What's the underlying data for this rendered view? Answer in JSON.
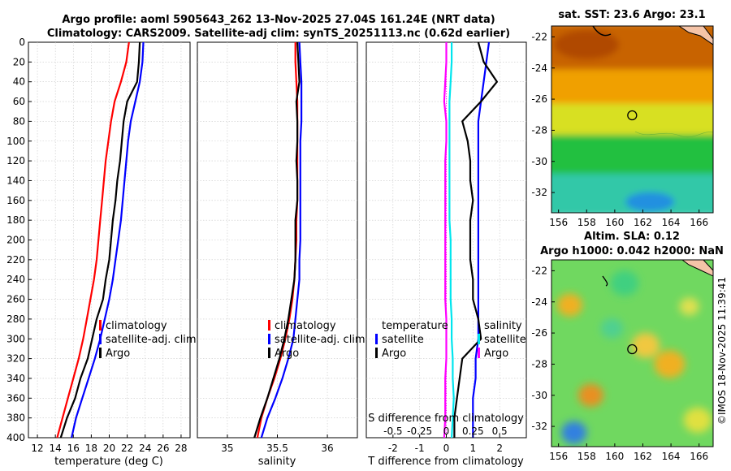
{
  "title": {
    "line1": "Argo profile: aoml 5905643_262 13-Nov-2025 27.04S 161.24E (NRT data)",
    "line2": "Climatology: CARS2009. Satellite-adj clim: synTS_20251113.nc (0.62d earlier)"
  },
  "copyright": "©IMOS 18-Nov-2025 11:39:41",
  "colors": {
    "red": "#ff0000",
    "blue": "#0000ff",
    "black": "#000000",
    "cyan": "#00e5ee",
    "magenta": "#ff00ff"
  },
  "chart_data": [
    {
      "name": "temperature-profile",
      "type": "line",
      "xlabel": "temperature (deg C)",
      "ylabel": "",
      "xlim": [
        11,
        29
      ],
      "ylim": [
        0,
        400
      ],
      "xticks": [
        "12",
        "14",
        "16",
        "18",
        "20",
        "22",
        "24",
        "26",
        "28"
      ],
      "xtick_values": [
        12,
        14,
        16,
        18,
        20,
        22,
        24,
        26,
        28
      ],
      "yticks": [
        "0",
        "20",
        "40",
        "60",
        "80",
        "100",
        "120",
        "140",
        "160",
        "180",
        "200",
        "220",
        "240",
        "260",
        "280",
        "300",
        "320",
        "340",
        "360",
        "380",
        "400"
      ],
      "grid": true,
      "legend": {
        "placement": "lower-right",
        "entries": [
          "climatology",
          "satellite-adj. clim",
          "Argo"
        ]
      },
      "series": [
        {
          "name": "climatology",
          "color": "red",
          "depth": [
            0,
            20,
            40,
            60,
            80,
            100,
            120,
            140,
            160,
            180,
            200,
            220,
            240,
            260,
            280,
            300,
            320,
            340,
            360,
            380,
            400
          ],
          "values": [
            22.2,
            21.9,
            21.3,
            20.6,
            20.2,
            19.9,
            19.6,
            19.4,
            19.2,
            19.0,
            18.8,
            18.6,
            18.3,
            17.9,
            17.5,
            17.1,
            16.6,
            16.0,
            15.4,
            14.8,
            14.2
          ]
        },
        {
          "name": "satellite-adj. clim",
          "color": "blue",
          "depth": [
            0,
            20,
            40,
            60,
            80,
            100,
            120,
            140,
            160,
            180,
            200,
            220,
            240,
            260,
            280,
            300,
            320,
            340,
            360,
            380,
            400
          ],
          "values": [
            23.8,
            23.7,
            23.4,
            22.9,
            22.4,
            22.1,
            21.9,
            21.7,
            21.5,
            21.3,
            21.0,
            20.7,
            20.4,
            20.0,
            19.5,
            19.0,
            18.4,
            17.7,
            17.0,
            16.3,
            15.8
          ]
        },
        {
          "name": "Argo",
          "color": "black",
          "depth": [
            0,
            20,
            40,
            60,
            80,
            100,
            120,
            140,
            160,
            180,
            200,
            220,
            240,
            260,
            280,
            300,
            320,
            340,
            360,
            380,
            400
          ],
          "values": [
            23.4,
            23.3,
            23.1,
            22.0,
            21.6,
            21.4,
            21.2,
            20.9,
            20.7,
            20.4,
            20.2,
            20.0,
            19.6,
            19.3,
            18.6,
            18.1,
            17.6,
            16.8,
            16.2,
            15.3,
            14.6
          ]
        }
      ]
    },
    {
      "name": "salinity-profile",
      "type": "line",
      "xlabel": "salinity",
      "xlim": [
        34.7,
        36.3
      ],
      "ylim": [
        0,
        400
      ],
      "xticks": [
        "35",
        "35.5",
        "36"
      ],
      "xtick_values": [
        35,
        35.5,
        36
      ],
      "grid": true,
      "legend": {
        "placement": "lower-right",
        "entries": [
          "climatology",
          "satellite-adj. clim",
          "Argo"
        ]
      },
      "series": [
        {
          "name": "climatology",
          "color": "red",
          "depth": [
            0,
            20,
            40,
            60,
            80,
            100,
            120,
            140,
            160,
            180,
            200,
            220,
            240,
            260,
            280,
            300,
            320,
            340,
            360,
            380,
            400
          ],
          "values": [
            35.68,
            35.68,
            35.69,
            35.7,
            35.7,
            35.7,
            35.7,
            35.7,
            35.7,
            35.69,
            35.69,
            35.68,
            35.67,
            35.65,
            35.62,
            35.58,
            35.53,
            35.47,
            35.4,
            35.34,
            35.3
          ]
        },
        {
          "name": "satellite-adj. clim",
          "color": "blue",
          "depth": [
            0,
            20,
            40,
            60,
            80,
            100,
            120,
            140,
            160,
            180,
            200,
            220,
            240,
            260,
            280,
            300,
            320,
            340,
            360,
            380,
            400
          ],
          "values": [
            35.72,
            35.73,
            35.74,
            35.74,
            35.74,
            35.73,
            35.73,
            35.73,
            35.73,
            35.73,
            35.73,
            35.72,
            35.72,
            35.7,
            35.68,
            35.66,
            35.61,
            35.55,
            35.48,
            35.4,
            35.34
          ]
        },
        {
          "name": "Argo",
          "color": "black",
          "depth": [
            0,
            20,
            40,
            60,
            80,
            100,
            120,
            140,
            160,
            180,
            200,
            220,
            240,
            260,
            280,
            300,
            320,
            340,
            360,
            380,
            400
          ],
          "values": [
            35.7,
            35.71,
            35.72,
            35.69,
            35.7,
            35.7,
            35.69,
            35.7,
            35.7,
            35.68,
            35.68,
            35.68,
            35.67,
            35.64,
            35.61,
            35.57,
            35.52,
            35.46,
            35.4,
            35.33,
            35.27
          ]
        }
      ]
    },
    {
      "name": "difference-profile",
      "type": "line",
      "xlabel": "T difference from climatology",
      "xlabel_top": "S difference from climatology",
      "xlim": [
        -3,
        3
      ],
      "ylim": [
        0,
        400
      ],
      "xticks": [
        "-2",
        "-1",
        "0",
        "1",
        "2"
      ],
      "xtick_values": [
        -2,
        -1,
        0,
        1,
        2
      ],
      "s_xticks": [
        "-0.5",
        "-0.25",
        "0",
        "0.25",
        "0.5"
      ],
      "grid": true,
      "legend_temperature": {
        "header": "temperature",
        "entries": [
          "satellite",
          "Argo"
        ]
      },
      "legend_salinity": {
        "header": "salinity",
        "entries": [
          "satellite",
          "Argo"
        ]
      },
      "series": [
        {
          "name": "T satellite",
          "color": "blue",
          "depth": [
            0,
            20,
            40,
            60,
            80,
            100,
            120,
            140,
            160,
            180,
            200,
            220,
            240,
            260,
            280,
            300,
            320,
            340,
            360,
            380,
            400
          ],
          "values": [
            1.6,
            1.5,
            1.4,
            1.3,
            1.2,
            1.2,
            1.2,
            1.2,
            1.2,
            1.2,
            1.2,
            1.2,
            1.2,
            1.2,
            1.2,
            1.2,
            1.1,
            1.1,
            1.0,
            1.0,
            1.0
          ]
        },
        {
          "name": "T Argo",
          "color": "black",
          "depth": [
            0,
            20,
            40,
            60,
            80,
            100,
            120,
            140,
            160,
            180,
            200,
            220,
            240,
            260,
            280,
            300,
            320,
            340,
            360,
            380,
            400
          ],
          "values": [
            1.2,
            1.4,
            1.9,
            1.3,
            0.6,
            0.8,
            0.9,
            0.9,
            1.0,
            0.9,
            0.9,
            0.9,
            1.0,
            1.0,
            1.2,
            1.3,
            0.6,
            0.5,
            0.4,
            0.3,
            0.3
          ]
        },
        {
          "name": "S satellite",
          "color": "cyan",
          "depth": [
            0,
            20,
            40,
            60,
            80,
            100,
            120,
            140,
            160,
            180,
            200,
            220,
            240,
            260,
            280,
            300,
            320,
            340,
            360,
            380,
            400
          ],
          "values": [
            0.05,
            0.05,
            0.04,
            0.03,
            0.03,
            0.03,
            0.03,
            0.03,
            0.03,
            0.03,
            0.04,
            0.04,
            0.04,
            0.04,
            0.05,
            0.05,
            0.06,
            0.06,
            0.07,
            0.06,
            0.05
          ]
        },
        {
          "name": "S Argo",
          "color": "magenta",
          "depth": [
            0,
            20,
            40,
            60,
            80,
            100,
            120,
            140,
            160,
            180,
            200,
            220,
            240,
            260,
            280,
            300,
            320,
            340,
            360,
            380,
            400
          ],
          "values": [
            0.0,
            0.0,
            -0.01,
            -0.02,
            0.0,
            0.0,
            -0.01,
            -0.01,
            -0.01,
            -0.01,
            -0.01,
            -0.01,
            -0.01,
            -0.01,
            0.0,
            0.0,
            0.0,
            -0.01,
            -0.01,
            -0.01,
            -0.02
          ]
        }
      ]
    },
    {
      "name": "sst-map",
      "type": "heatmap",
      "title": "sat. SST: 23.6 Argo: 23.1",
      "xlim": [
        155.5,
        167
      ],
      "ylim": [
        -33.3,
        -21.3
      ],
      "xticks": [
        "156",
        "158",
        "160",
        "162",
        "164",
        "166"
      ],
      "xtick_values": [
        156,
        158,
        160,
        162,
        164,
        166
      ],
      "yticks": [
        "-22",
        "-24",
        "-26",
        "-28",
        "-30",
        "-32"
      ],
      "ytick_values": [
        -22,
        -24,
        -26,
        -28,
        -30,
        -32
      ],
      "argo_position": [
        161.24,
        -27.04
      ],
      "color_bands": [
        {
          "ymax": -21.3,
          "ymin": -24.3,
          "color": "#c86400"
        },
        {
          "ymax": -24.3,
          "ymin": -26.5,
          "color": "#f0a000"
        },
        {
          "ymax": -26.5,
          "ymin": -28.5,
          "color": "#d8e020"
        },
        {
          "ymax": -28.5,
          "ymin": -31.0,
          "color": "#20c040"
        },
        {
          "ymax": -31.0,
          "ymin": -33.3,
          "color": "#30c8a8"
        }
      ]
    },
    {
      "name": "sla-map",
      "type": "heatmap",
      "title": "Altim. SLA: 0.12",
      "subtitle": "Argo h1000: 0.042 h2000: NaN",
      "xlim": [
        155.5,
        167
      ],
      "ylim": [
        -33.3,
        -21.3
      ],
      "xticks": [
        "156",
        "158",
        "160",
        "162",
        "164",
        "166"
      ],
      "xtick_values": [
        156,
        158,
        160,
        162,
        164,
        166
      ],
      "yticks": [
        "-22",
        "-24",
        "-26",
        "-28",
        "-30",
        "-32"
      ],
      "ytick_values": [
        -22,
        -24,
        -26,
        -28,
        -30,
        -32
      ],
      "argo_position": [
        161.24,
        -27.04
      ],
      "background_color": "#70d860",
      "blobs": [
        {
          "lon": 156.8,
          "lat": -24.2,
          "r": 0.9,
          "color": "#f0b020"
        },
        {
          "lon": 162.2,
          "lat": -26.8,
          "r": 1.0,
          "color": "#f0c840"
        },
        {
          "lon": 163.9,
          "lat": -28.0,
          "r": 1.1,
          "color": "#f0b020"
        },
        {
          "lon": 158.3,
          "lat": -30.0,
          "r": 0.9,
          "color": "#e89020"
        },
        {
          "lon": 157.1,
          "lat": -32.4,
          "r": 0.9,
          "color": "#3080e0"
        },
        {
          "lon": 160.7,
          "lat": -22.8,
          "r": 1.0,
          "color": "#40d080"
        },
        {
          "lon": 165.9,
          "lat": -31.6,
          "r": 1.0,
          "color": "#e0e040"
        },
        {
          "lon": 159.8,
          "lat": -25.7,
          "r": 0.8,
          "color": "#50d090"
        },
        {
          "lon": 165.3,
          "lat": -24.3,
          "r": 0.7,
          "color": "#e0e050"
        }
      ]
    }
  ]
}
